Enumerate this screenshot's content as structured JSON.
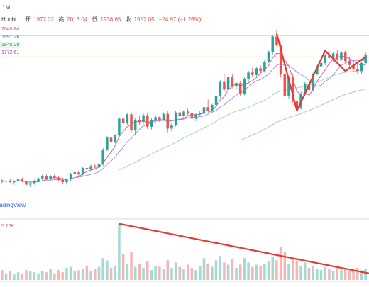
{
  "toolbar": {
    "interval_label": "1M"
  },
  "header": {
    "source": "Huobi",
    "open_label": "开",
    "open_value": "1977.02",
    "high_label": "高",
    "high_value": "2013.04",
    "low_label": "低",
    "low_value": "1938.65",
    "close_label": "收",
    "close_value": "1952.05",
    "change": "−24.97 (−1.26%)"
  },
  "ma_legend": [
    {
      "value": "2040.84",
      "color": "#e8498a"
    },
    {
      "value": "1997.26",
      "color": "#4a6ee0"
    },
    {
      "value": "1845.28",
      "color": "#1f9e6a"
    },
    {
      "value": "1772.61",
      "color": "#9c3fb2"
    }
  ],
  "watermark": "TradingView",
  "volume_label": "5.16K",
  "colors": {
    "up": "#26a69a",
    "down": "#ef5350",
    "up_fill": "#a5d9d1",
    "down_fill": "#f5b6b4",
    "ma_short": "#e8498a",
    "ma_mid": "#9c89e8",
    "ma_long": "#9ad9a6",
    "ma_longer": "#e3a0d4",
    "annotation": "#e53935",
    "level": "#f5a623"
  },
  "chart_data": {
    "type": "candlestick",
    "title": "",
    "ylim": [
      1660,
      2060
    ],
    "candles": [
      [
        1725,
        1728,
        1719,
        1722
      ],
      [
        1722,
        1726,
        1717,
        1724
      ],
      [
        1724,
        1729,
        1720,
        1721
      ],
      [
        1721,
        1725,
        1716,
        1723
      ],
      [
        1723,
        1730,
        1719,
        1727
      ],
      [
        1727,
        1731,
        1721,
        1722
      ],
      [
        1722,
        1724,
        1713,
        1716
      ],
      [
        1716,
        1722,
        1711,
        1719
      ],
      [
        1719,
        1726,
        1716,
        1724
      ],
      [
        1724,
        1731,
        1721,
        1729
      ],
      [
        1729,
        1737,
        1725,
        1733
      ],
      [
        1733,
        1737,
        1726,
        1728
      ],
      [
        1728,
        1736,
        1724,
        1734
      ],
      [
        1734,
        1738,
        1727,
        1730
      ],
      [
        1730,
        1734,
        1724,
        1726
      ],
      [
        1726,
        1731,
        1718,
        1721
      ],
      [
        1721,
        1729,
        1716,
        1727
      ],
      [
        1727,
        1741,
        1724,
        1738
      ],
      [
        1738,
        1745,
        1733,
        1742
      ],
      [
        1742,
        1746,
        1735,
        1737
      ],
      [
        1737,
        1754,
        1735,
        1751
      ],
      [
        1751,
        1756,
        1746,
        1749
      ],
      [
        1749,
        1758,
        1745,
        1755
      ],
      [
        1755,
        1759,
        1748,
        1752
      ],
      [
        1752,
        1761,
        1748,
        1759
      ],
      [
        1759,
        1793,
        1755,
        1790
      ],
      [
        1790,
        1818,
        1787,
        1815
      ],
      [
        1815,
        1822,
        1800,
        1805
      ],
      [
        1805,
        1822,
        1802,
        1820
      ],
      [
        1820,
        1858,
        1815,
        1855
      ],
      [
        1855,
        1872,
        1840,
        1845
      ],
      [
        1845,
        1866,
        1842,
        1864
      ],
      [
        1864,
        1868,
        1825,
        1830
      ],
      [
        1830,
        1856,
        1820,
        1852
      ],
      [
        1852,
        1862,
        1842,
        1848
      ],
      [
        1848,
        1866,
        1844,
        1862
      ],
      [
        1862,
        1868,
        1833,
        1838
      ],
      [
        1838,
        1856,
        1832,
        1851
      ],
      [
        1851,
        1862,
        1845,
        1858
      ],
      [
        1858,
        1861,
        1848,
        1852
      ],
      [
        1852,
        1868,
        1850,
        1865
      ],
      [
        1865,
        1872,
        1826,
        1834
      ],
      [
        1834,
        1845,
        1828,
        1842
      ],
      [
        1842,
        1872,
        1838,
        1868
      ],
      [
        1868,
        1875,
        1855,
        1860
      ],
      [
        1860,
        1873,
        1856,
        1870
      ],
      [
        1870,
        1876,
        1862,
        1867
      ],
      [
        1867,
        1872,
        1850,
        1855
      ],
      [
        1855,
        1866,
        1850,
        1864
      ],
      [
        1864,
        1872,
        1860,
        1866
      ],
      [
        1866,
        1881,
        1862,
        1879
      ],
      [
        1879,
        1895,
        1869,
        1872
      ],
      [
        1872,
        1886,
        1868,
        1884
      ],
      [
        1884,
        1906,
        1880,
        1903
      ],
      [
        1903,
        1936,
        1898,
        1932
      ],
      [
        1932,
        1948,
        1913,
        1916
      ],
      [
        1916,
        1945,
        1912,
        1942
      ],
      [
        1942,
        1948,
        1919,
        1923
      ],
      [
        1923,
        1932,
        1916,
        1930
      ],
      [
        1930,
        1934,
        1903,
        1907
      ],
      [
        1907,
        1942,
        1904,
        1938
      ],
      [
        1938,
        1956,
        1930,
        1952
      ],
      [
        1952,
        1962,
        1943,
        1947
      ],
      [
        1947,
        1964,
        1944,
        1961
      ],
      [
        1961,
        1967,
        1952,
        1955
      ],
      [
        1955,
        1978,
        1952,
        1975
      ],
      [
        1975,
        1998,
        1972,
        1995
      ],
      [
        1995,
        2031,
        1990,
        2028
      ],
      [
        2028,
        2042,
        2006,
        2010
      ],
      [
        2010,
        2016,
        1942,
        1948
      ],
      [
        1948,
        1955,
        1898,
        1903
      ],
      [
        1903,
        1946,
        1896,
        1942
      ],
      [
        1942,
        1948,
        1888,
        1892
      ],
      [
        1892,
        1915,
        1870,
        1878
      ],
      [
        1878,
        1912,
        1874,
        1908
      ],
      [
        1908,
        1932,
        1903,
        1929
      ],
      [
        1929,
        1938,
        1910,
        1915
      ],
      [
        1915,
        1952,
        1912,
        1949
      ],
      [
        1949,
        1968,
        1946,
        1965
      ],
      [
        1965,
        1978,
        1958,
        1972
      ],
      [
        1972,
        1991,
        1967,
        1988
      ],
      [
        1988,
        1996,
        1980,
        1983
      ],
      [
        1983,
        1994,
        1975,
        1992
      ],
      [
        1992,
        1999,
        1976,
        1980
      ],
      [
        1980,
        1997,
        1976,
        1994
      ],
      [
        1994,
        1998,
        1972,
        1976
      ],
      [
        1976,
        1985,
        1962,
        1968
      ],
      [
        1968,
        1978,
        1955,
        1960
      ],
      [
        1960,
        1972,
        1950,
        1955
      ],
      [
        1955,
        1975,
        1948,
        1972
      ],
      [
        1972,
        1994,
        1968,
        1990
      ]
    ],
    "volume": {
      "label": "5.16K",
      "ylim": [
        0,
        5.4
      ],
      "values": [
        0.9,
        0.6,
        0.8,
        0.5,
        0.7,
        0.6,
        0.9,
        0.8,
        0.7,
        0.6,
        0.8,
        0.7,
        1.0,
        0.6,
        0.9,
        0.7,
        1.1,
        1.2,
        0.8,
        0.9,
        1.0,
        1.3,
        0.8,
        1.0,
        1.2,
        2.0,
        1.8,
        1.1,
        1.3,
        5.16,
        2.4,
        1.5,
        2.6,
        1.2,
        1.5,
        1.1,
        1.7,
        0.9,
        1.3,
        1.2,
        1.0,
        1.8,
        1.1,
        1.6,
        1.2,
        1.0,
        1.4,
        1.1,
        0.9,
        1.3,
        2.0,
        1.5,
        1.2,
        1.8,
        2.2,
        1.6,
        1.4,
        1.9,
        1.1,
        1.4,
        2.0,
        1.6,
        1.2,
        1.4,
        1.3,
        1.5,
        1.7,
        2.1,
        1.8,
        3.0,
        2.6,
        1.5,
        2.0,
        1.8,
        1.3,
        1.6,
        1.1,
        1.3,
        1.0,
        0.9,
        1.2,
        1.0,
        0.8,
        1.1,
        0.9,
        1.0,
        0.8,
        0.9,
        1.1,
        0.9,
        1.0
      ]
    },
    "levels": [
      1985,
      2030
    ],
    "annotations": {
      "price_zigzag": [
        {
          "i": 68,
          "p": 2034
        },
        {
          "i": 73,
          "p": 1872
        },
        {
          "i": 80,
          "p": 1998
        },
        {
          "i": 85,
          "p": 1955
        },
        {
          "i": 90,
          "p": 1985
        }
      ],
      "volume_trend": [
        {
          "i": 29,
          "v": 5.16
        },
        {
          "i": 90,
          "v": 0.6
        }
      ]
    }
  }
}
